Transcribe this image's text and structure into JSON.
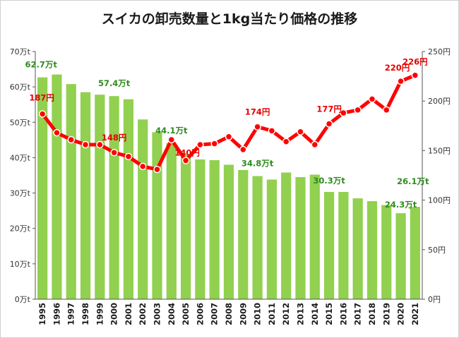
{
  "chart_data": {
    "type": "bar+line",
    "title": "スイカの卸売数量と1kg当たり価格の推移",
    "categories": [
      "1995",
      "1996",
      "1997",
      "1998",
      "1999",
      "2000",
      "2001",
      "2002",
      "2003",
      "2004",
      "2005",
      "2006",
      "2007",
      "2008",
      "2009",
      "2010",
      "2011",
      "2012",
      "2013",
      "2014",
      "2015",
      "2016",
      "2017",
      "2018",
      "2019",
      "2020",
      "2021"
    ],
    "series": [
      {
        "type": "bar",
        "axis": "left",
        "color": "#92d050",
        "values": [
          62.7,
          63.5,
          60.8,
          58.5,
          57.8,
          57.4,
          56.5,
          50.8,
          47.2,
          44.1,
          41.0,
          39.5,
          39.3,
          38.0,
          36.5,
          34.8,
          33.8,
          35.8,
          34.5,
          35.2,
          30.3,
          30.3,
          28.5,
          27.7,
          26.6,
          24.3,
          26.1
        ]
      },
      {
        "type": "line",
        "axis": "right",
        "color": "#ff0000",
        "values": [
          187,
          168,
          161,
          156,
          156,
          148,
          144,
          134,
          131,
          161,
          140,
          156,
          157,
          164,
          151,
          174,
          170,
          159,
          169,
          156,
          177,
          188,
          191,
          202,
          191,
          220,
          226
        ]
      }
    ],
    "y_left": {
      "min": 0,
      "max": 70,
      "step": 10,
      "ticks": [
        "0万t",
        "10万t",
        "20万t",
        "30万t",
        "40万t",
        "50万t",
        "60万t",
        "70万t"
      ]
    },
    "y_right": {
      "min": 0,
      "max": 250,
      "step": 50,
      "ticks": [
        "0円",
        "50円",
        "100円",
        "150円",
        "200円",
        "250円"
      ]
    },
    "annotations_bar": [
      {
        "year": "1995",
        "text": "62.7万t"
      },
      {
        "year": "2000",
        "text": "57.4万t"
      },
      {
        "year": "2004",
        "text": "44.1万t"
      },
      {
        "year": "2010",
        "text": "34.8万t"
      },
      {
        "year": "2015",
        "text": "30.3万t"
      },
      {
        "year": "2020",
        "text": "24.3万t"
      },
      {
        "year": "2021",
        "text": "26.1万t"
      }
    ],
    "annotations_line": [
      {
        "year": "1995",
        "text": "187円"
      },
      {
        "year": "2000",
        "text": "148円"
      },
      {
        "year": "2005",
        "text": "140円"
      },
      {
        "year": "2010",
        "text": "174円"
      },
      {
        "year": "2015",
        "text": "177円"
      },
      {
        "year": "2020",
        "text": "220円"
      },
      {
        "year": "2021",
        "text": "226円"
      }
    ],
    "grid": false
  }
}
